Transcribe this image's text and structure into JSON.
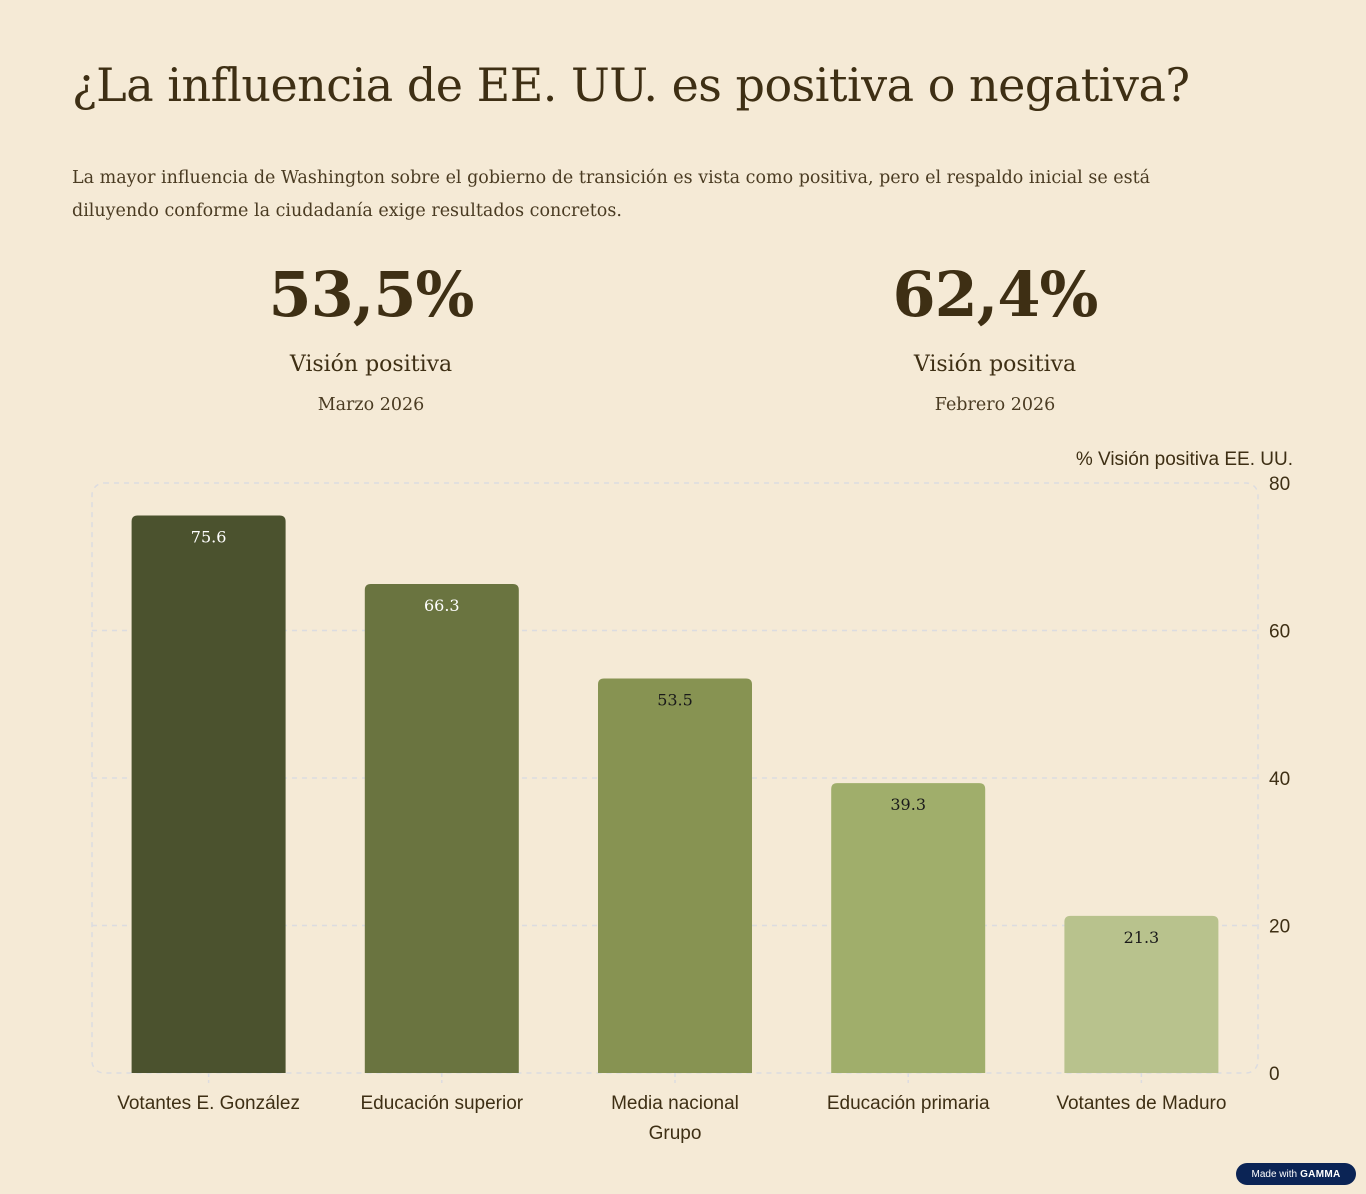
{
  "header": {
    "title": "¿La influencia de EE. UU. es positiva o negativa?",
    "subtitle": "La mayor influencia de Washington sobre el gobierno de transición es vista como positiva, pero el respaldo inicial se está diluyendo conforme la ciudadanía exige resultados concretos."
  },
  "stats": [
    {
      "value": "53,5%",
      "label": "Visión positiva",
      "date": "Marzo 2026"
    },
    {
      "value": "62,4%",
      "label": "Visión positiva",
      "date": "Febrero 2026"
    }
  ],
  "chart_data": {
    "type": "bar",
    "title": "",
    "xlabel": "Grupo",
    "ylabel": "% Visión positiva EE. UU.",
    "categories": [
      "Votantes E. González",
      "Educación superior",
      "Media nacional",
      "Educación primaria",
      "Votantes de Maduro"
    ],
    "values": [
      75.6,
      66.3,
      53.5,
      39.3,
      21.3
    ],
    "data_labels": [
      "75.6",
      "66.3",
      "53.5",
      "39.3",
      "21.3"
    ],
    "bar_colors": [
      "#4B522E",
      "#6A7440",
      "#879352",
      "#A0AE6B",
      "#B8C28D"
    ],
    "label_colors": [
      "#FFFFFF",
      "#FFFFFF",
      "#1A1A1A",
      "#1A1A1A",
      "#1A1A1A"
    ],
    "ylim": [
      0,
      80
    ],
    "yticks": [
      0,
      20,
      40,
      60,
      80
    ],
    "grid": true,
    "yaxis_side": "right"
  },
  "footer": {
    "badge_prefix": "Made with",
    "badge_brand": "GAMMA"
  }
}
